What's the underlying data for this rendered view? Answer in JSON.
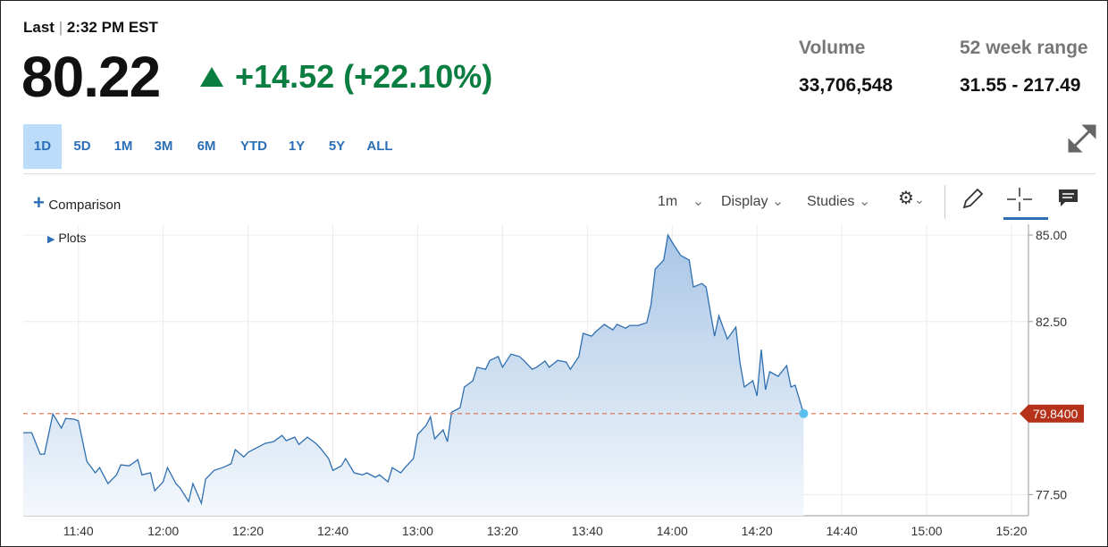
{
  "header": {
    "last_label": "Last",
    "time": "2:32 PM EST",
    "price": "80.22",
    "change": "+14.52",
    "change_pct": "(+22.10%)"
  },
  "stats": [
    {
      "label": "Volume",
      "value": "33,706,548"
    },
    {
      "label": "52 week range",
      "value": "31.55 - 217.49"
    }
  ],
  "ranges": [
    "1D",
    "5D",
    "1M",
    "3M",
    "6M",
    "YTD",
    "1Y",
    "5Y",
    "ALL"
  ],
  "active_range": "1D",
  "toolbar": {
    "comparison": "Comparison",
    "interval": "1m",
    "display": "Display",
    "studies": "Studies",
    "plots": "Plots"
  },
  "chart_data": {
    "type": "area",
    "color": "#2f6fb0",
    "x": [
      "11:27",
      "11:29",
      "11:31",
      "11:32",
      "11:34",
      "11:36",
      "11:37",
      "11:39",
      "11:40",
      "11:42",
      "11:44",
      "11:45",
      "11:47",
      "11:49",
      "11:50",
      "11:52",
      "11:54",
      "11:55",
      "11:57",
      "11:58",
      "12:00",
      "12:01",
      "12:03",
      "12:04",
      "12:06",
      "12:07",
      "12:09",
      "12:10",
      "12:12",
      "12:14",
      "12:16",
      "12:17",
      "12:19",
      "12:20",
      "12:22",
      "12:24",
      "12:26",
      "12:28",
      "12:29",
      "12:31",
      "12:32",
      "12:34",
      "12:36",
      "12:37",
      "12:39",
      "12:40",
      "12:42",
      "12:43",
      "12:45",
      "12:47",
      "12:48",
      "12:50",
      "12:51",
      "12:53",
      "12:54",
      "12:56",
      "12:57",
      "12:59",
      "13:00",
      "13:02",
      "13:03",
      "13:04",
      "13:06",
      "13:07",
      "13:08",
      "13:10",
      "13:11",
      "13:13",
      "13:14",
      "13:16",
      "13:17",
      "13:19",
      "13:20",
      "13:22",
      "13:24",
      "13:25",
      "13:27",
      "13:28",
      "13:30",
      "13:31",
      "13:33",
      "13:35",
      "13:36",
      "13:38",
      "13:39",
      "13:41",
      "13:42",
      "13:44",
      "13:46",
      "13:47",
      "13:49",
      "13:50",
      "13:52",
      "13:54",
      "13:55",
      "13:56",
      "13:58",
      "13:59",
      "14:00",
      "14:02",
      "14:04",
      "14:05",
      "14:07",
      "14:08",
      "14:10",
      "14:11",
      "14:13",
      "14:15",
      "14:16",
      "14:17",
      "14:19",
      "14:20",
      "14:21",
      "14:22",
      "14:23",
      "14:25",
      "14:27",
      "14:28",
      "14:29",
      "14:31"
    ],
    "values": [
      79.29,
      79.29,
      78.67,
      78.67,
      79.83,
      79.42,
      79.7,
      79.68,
      79.63,
      78.46,
      78.13,
      78.28,
      77.82,
      78.07,
      78.36,
      78.33,
      78.51,
      78.07,
      78.13,
      77.61,
      77.87,
      78.28,
      77.82,
      77.69,
      77.3,
      77.82,
      77.25,
      77.95,
      78.2,
      78.28,
      78.39,
      78.8,
      78.59,
      78.72,
      78.85,
      78.98,
      79.03,
      79.21,
      79.06,
      79.16,
      78.95,
      79.16,
      78.98,
      78.85,
      78.54,
      78.2,
      78.33,
      78.54,
      78.13,
      78.07,
      78.13,
      78.0,
      78.07,
      77.87,
      78.28,
      78.13,
      78.28,
      78.54,
      79.24,
      79.5,
      79.75,
      79.11,
      79.37,
      79.03,
      79.88,
      80.01,
      80.61,
      80.79,
      81.18,
      81.12,
      81.38,
      81.49,
      81.18,
      81.56,
      81.49,
      81.38,
      81.12,
      81.18,
      81.36,
      81.18,
      81.38,
      81.33,
      81.12,
      81.49,
      82.16,
      82.08,
      82.21,
      82.42,
      82.26,
      82.42,
      82.31,
      82.39,
      82.39,
      82.47,
      82.98,
      84.02,
      84.28,
      85.0,
      84.79,
      84.41,
      84.28,
      83.5,
      83.6,
      83.5,
      82.08,
      82.67,
      82.0,
      82.34,
      81.3,
      80.61,
      80.79,
      80.35,
      81.69,
      80.53,
      81.05,
      80.92,
      81.23,
      80.61,
      80.66,
      79.84
    ],
    "xlim": [
      "11:27",
      "15:24"
    ],
    "xticks": [
      "11:40",
      "12:00",
      "12:20",
      "12:40",
      "13:00",
      "13:20",
      "13:40",
      "14:00",
      "14:20",
      "14:40",
      "15:00",
      "15:20"
    ],
    "ylim": [
      76.89,
      85.31
    ],
    "yticks": [
      {
        "value": 77.5,
        "label": "77.50"
      },
      {
        "value": 82.5,
        "label": "82.50"
      },
      {
        "value": 85,
        "label": "85.00"
      }
    ],
    "grid": true,
    "last": {
      "value": 79.84,
      "label": "79.8400"
    }
  }
}
